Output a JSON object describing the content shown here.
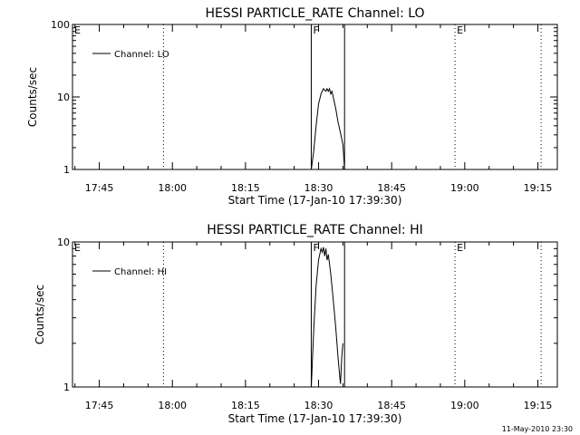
{
  "chart_data": [
    {
      "type": "line",
      "title": "HESSI PARTICLE_RATE Channel: LO",
      "xlabel": "Start Time (17-Jan-10 17:39:30)",
      "ylabel": "Counts/sec",
      "yscale": "log",
      "ylim": [
        1,
        100
      ],
      "xlim": [
        "17:39:30",
        "19:19:00"
      ],
      "x_ticks": [
        "17:45",
        "18:00",
        "18:15",
        "18:30",
        "18:45",
        "19:00",
        "19:15"
      ],
      "y_ticks": [
        "1",
        "10",
        "100"
      ],
      "legend": {
        "label": "Channel: LO",
        "placement": "top-left"
      },
      "markers": [
        {
          "label": "E",
          "time": "17:39:30",
          "style": "none"
        },
        {
          "label": "",
          "time": "17:58:10",
          "style": "dotted"
        },
        {
          "label": "F",
          "time": "18:28:30",
          "style": "solid"
        },
        {
          "label": "",
          "time": "18:35:20",
          "style": "solid"
        },
        {
          "label": "E",
          "time": "18:58:00",
          "style": "dotted"
        },
        {
          "label": "",
          "time": "19:15:40",
          "style": "dotted"
        }
      ],
      "series": [
        {
          "name": "Channel: LO",
          "x": [
            "18:28:30",
            "18:29:00",
            "18:29:30",
            "18:30:00",
            "18:30:30",
            "18:31:00",
            "18:31:30",
            "18:31:45",
            "18:32:00",
            "18:32:15",
            "18:32:30",
            "18:32:45",
            "18:33:00",
            "18:33:30",
            "18:34:00",
            "18:34:30",
            "18:35:00",
            "18:35:20"
          ],
          "y": [
            1,
            1.8,
            4,
            8,
            11,
            13,
            12,
            13,
            12,
            13,
            11,
            12,
            10,
            7,
            4.5,
            3.2,
            2.2,
            1
          ]
        }
      ]
    },
    {
      "type": "line",
      "title": "HESSI PARTICLE_RATE Channel: HI",
      "xlabel": "Start Time (17-Jan-10 17:39:30)",
      "ylabel": "Counts/sec",
      "yscale": "log",
      "ylim": [
        1,
        10
      ],
      "xlim": [
        "17:39:30",
        "19:19:00"
      ],
      "x_ticks": [
        "17:45",
        "18:00",
        "18:15",
        "18:30",
        "18:45",
        "19:00",
        "19:15"
      ],
      "y_ticks": [
        "1",
        "10"
      ],
      "legend": {
        "label": "Channel: HI",
        "placement": "top-left"
      },
      "markers": [
        {
          "label": "E",
          "time": "17:39:30",
          "style": "none"
        },
        {
          "label": "",
          "time": "17:58:10",
          "style": "dotted"
        },
        {
          "label": "F",
          "time": "18:28:30",
          "style": "solid"
        },
        {
          "label": "",
          "time": "18:35:20",
          "style": "solid"
        },
        {
          "label": "E",
          "time": "18:58:00",
          "style": "dotted"
        },
        {
          "label": "",
          "time": "19:15:40",
          "style": "dotted"
        }
      ],
      "series": [
        {
          "name": "Channel: HI",
          "x": [
            "18:28:30",
            "18:29:00",
            "18:29:30",
            "18:30:00",
            "18:30:30",
            "18:30:45",
            "18:31:00",
            "18:31:15",
            "18:31:30",
            "18:31:45",
            "18:32:00",
            "18:32:30",
            "18:33:00",
            "18:33:30",
            "18:34:00",
            "18:34:20",
            "18:34:30",
            "18:34:45",
            "18:35:00"
          ],
          "y": [
            1,
            2.5,
            5,
            7.5,
            9,
            8.5,
            9.2,
            8,
            9,
            7.5,
            8.2,
            6,
            4,
            2.6,
            1.6,
            1.2,
            1.05,
            1.6,
            2.0
          ]
        }
      ]
    }
  ],
  "timestamp": "11-May-2010 23:30"
}
